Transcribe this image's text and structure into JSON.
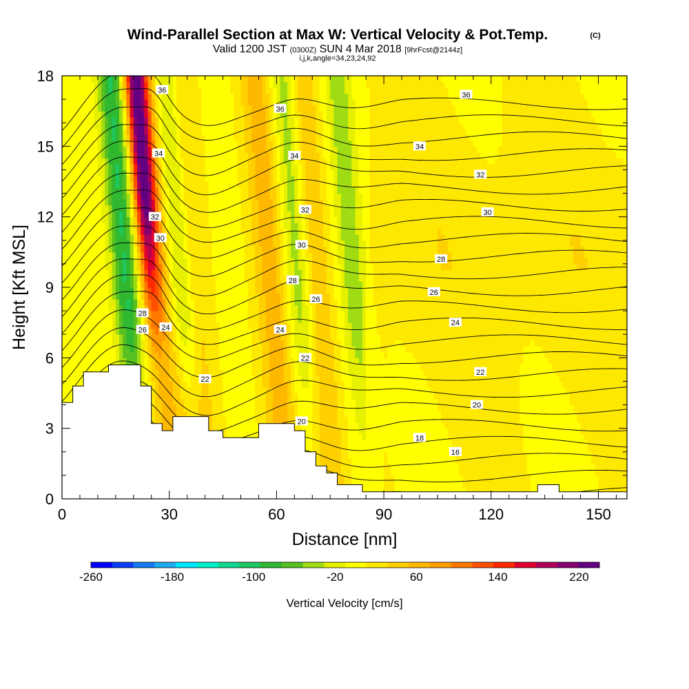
{
  "title": {
    "main": "Wind-Parallel Section at Max W: Vertical Velocity & Pot.Temp.",
    "copyright": "(C)",
    "valid_prefix": "Valid 1200 JST",
    "utc": "(0300Z)",
    "valid_suffix": "SUN 4 Mar 2018",
    "forecast": "[9hrFcst@2144z]",
    "indices": "i,j,k,angle=34,23,24,92"
  },
  "chart_data": {
    "type": "heatmap",
    "xlabel": "Distance [nm]",
    "ylabel": "Height [Kft MSL]",
    "xlim": [
      0,
      158
    ],
    "ylim": [
      0,
      18
    ],
    "xticks": [
      0,
      30,
      60,
      90,
      120,
      150
    ],
    "yticks": [
      0,
      3,
      6,
      9,
      12,
      15,
      18
    ],
    "colorbar": {
      "label": "Vertical Velocity [cm/s]",
      "range": [
        -260,
        240
      ],
      "tick_values": [
        -260,
        -180,
        -100,
        -20,
        60,
        140,
        220
      ],
      "tick_labels": [
        "-260",
        "-180",
        "-100",
        "-20",
        "60",
        "140",
        "220"
      ],
      "colors": [
        "#0000ff",
        "#0a3cf5",
        "#1478f0",
        "#1eaaf0",
        "#00e6ff",
        "#00f0c8",
        "#10d890",
        "#1ec860",
        "#30b830",
        "#58c020",
        "#a0dc14",
        "#e6f000",
        "#ffff00",
        "#ffe800",
        "#ffd000",
        "#ffb800",
        "#ff9c00",
        "#ff7800",
        "#ff5000",
        "#ff2800",
        "#e00030",
        "#b00058",
        "#860070",
        "#640082"
      ]
    },
    "updrafts": [
      {
        "x": 25.5,
        "peak_cm_s": 230
      },
      {
        "x": 31,
        "peak_cm_s": 60
      },
      {
        "x": 37,
        "peak_cm_s": 40
      },
      {
        "x": 59,
        "peak_cm_s": 60
      },
      {
        "x": 71.5,
        "peak_cm_s": 50
      }
    ],
    "downdrafts": [
      {
        "x": 18.5,
        "peak_cm_s": -100
      },
      {
        "x": 33.5,
        "peak_cm_s": -100
      },
      {
        "x": 67,
        "peak_cm_s": -60
      },
      {
        "x": 82,
        "peak_cm_s": -50
      }
    ],
    "theta_contours_C": [
      {
        "value": 16,
        "label_x": 110,
        "label_y": 2.0
      },
      {
        "value": 18,
        "label_x": 100,
        "label_y": 2.6
      },
      {
        "value": 20,
        "label_x": 67,
        "label_y": 3.3
      },
      {
        "value": 20,
        "label_x": 116,
        "label_y": 4.0
      },
      {
        "value": 22,
        "label_x": 40,
        "label_y": 5.1
      },
      {
        "value": 22,
        "label_x": 68,
        "label_y": 6.0
      },
      {
        "value": 22,
        "label_x": 117,
        "label_y": 5.4
      },
      {
        "value": 24,
        "label_x": 29,
        "label_y": 7.3
      },
      {
        "value": 24,
        "label_x": 61,
        "label_y": 7.2
      },
      {
        "value": 24,
        "label_x": 110,
        "label_y": 7.5
      },
      {
        "value": 26,
        "label_x": 22.5,
        "label_y": 7.2
      },
      {
        "value": 26,
        "label_x": 71,
        "label_y": 8.5
      },
      {
        "value": 26,
        "label_x": 104,
        "label_y": 8.8
      },
      {
        "value": 28,
        "label_x": 22.5,
        "label_y": 7.9
      },
      {
        "value": 28,
        "label_x": 64.5,
        "label_y": 9.3
      },
      {
        "value": 28,
        "label_x": 106,
        "label_y": 10.2
      },
      {
        "value": 30,
        "label_x": 27.5,
        "label_y": 11.1
      },
      {
        "value": 30,
        "label_x": 67,
        "label_y": 10.8
      },
      {
        "value": 30,
        "label_x": 119,
        "label_y": 12.2
      },
      {
        "value": 32,
        "label_x": 26,
        "label_y": 12.0
      },
      {
        "value": 32,
        "label_x": 68,
        "label_y": 12.3
      },
      {
        "value": 32,
        "label_x": 117,
        "label_y": 13.8
      },
      {
        "value": 34,
        "label_x": 27,
        "label_y": 14.7
      },
      {
        "value": 34,
        "label_x": 65,
        "label_y": 14.6
      },
      {
        "value": 34,
        "label_x": 100,
        "label_y": 15.0
      },
      {
        "value": 36,
        "label_x": 28,
        "label_y": 17.4
      },
      {
        "value": 36,
        "label_x": 61,
        "label_y": 16.6
      },
      {
        "value": 36,
        "label_x": 113,
        "label_y": 17.2
      }
    ],
    "terrain": [
      [
        0,
        4.1
      ],
      [
        3,
        4.1
      ],
      [
        3,
        4.8
      ],
      [
        6,
        4.8
      ],
      [
        6,
        5.4
      ],
      [
        13,
        5.4
      ],
      [
        13,
        5.7
      ],
      [
        22,
        5.7
      ],
      [
        22,
        4.8
      ],
      [
        25,
        4.8
      ],
      [
        25,
        3.2
      ],
      [
        28,
        3.2
      ],
      [
        28,
        2.9
      ],
      [
        31,
        2.9
      ],
      [
        31,
        3.5
      ],
      [
        41,
        3.5
      ],
      [
        41,
        2.9
      ],
      [
        45,
        2.9
      ],
      [
        45,
        2.6
      ],
      [
        55,
        2.6
      ],
      [
        55,
        3.2
      ],
      [
        65,
        3.2
      ],
      [
        65,
        2.9
      ],
      [
        68,
        2.9
      ],
      [
        68,
        2.0
      ],
      [
        71,
        2.0
      ],
      [
        71,
        1.4
      ],
      [
        74,
        1.4
      ],
      [
        74,
        1.1
      ],
      [
        77,
        1.1
      ],
      [
        77,
        0.6
      ],
      [
        84,
        0.6
      ],
      [
        84,
        0.3
      ],
      [
        133,
        0.3
      ],
      [
        133,
        0.6
      ],
      [
        139,
        0.6
      ],
      [
        139,
        0.3
      ],
      [
        158,
        0.3
      ]
    ]
  }
}
